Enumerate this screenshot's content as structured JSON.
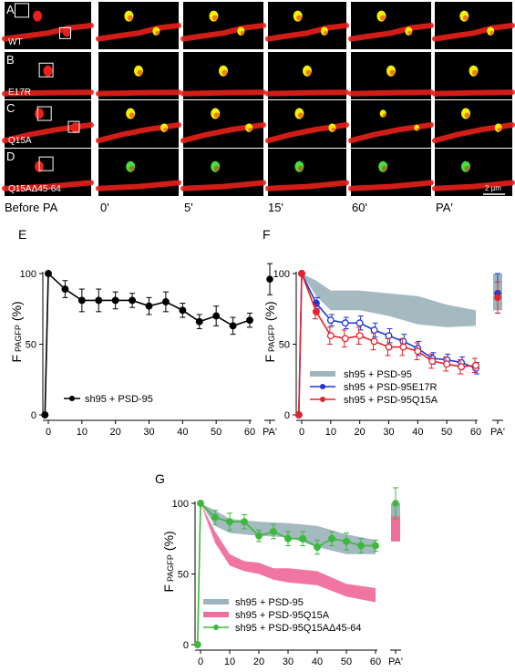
{
  "micrographs": {
    "rows": [
      {
        "panel": "A",
        "label": "WT"
      },
      {
        "panel": "B",
        "label": "E17R"
      },
      {
        "panel": "C",
        "label": "Q15A"
      },
      {
        "panel": "D",
        "label": "Q15AΔ45-64"
      }
    ],
    "columns": [
      "Before PA",
      "0'",
      "5'",
      "15'",
      "60'",
      "PA'"
    ],
    "scale_bar": "2 µm",
    "colors": {
      "background": "#000000",
      "dendrite": "#e8201a",
      "spot": "#f3f000",
      "spot_green": "#44e23a"
    }
  },
  "chart_data": [
    {
      "panel": "E",
      "type": "line",
      "ylabel_main": "F",
      "ylabel_sub": "PAGFP",
      "ylabel_unit": "(%)",
      "x_ticks": [
        "0",
        "10",
        "20",
        "30",
        "40",
        "50",
        "60"
      ],
      "y_ticks": [
        "0",
        "50",
        "100"
      ],
      "extra_x_tick": "PA'",
      "xlim": [
        0,
        60
      ],
      "ylim": [
        0,
        100
      ],
      "series": [
        {
          "name": "sh95 + PSD-95",
          "color": "#000000",
          "x": [
            -1,
            0,
            5,
            10,
            15,
            20,
            25,
            30,
            35,
            40,
            45,
            50,
            55,
            60
          ],
          "y": [
            0,
            100,
            89,
            81,
            81,
            81,
            81,
            77,
            80,
            74,
            66,
            70,
            63,
            67
          ],
          "err": [
            0,
            0,
            6,
            8,
            8,
            6,
            5,
            6,
            7,
            5,
            5,
            7,
            6,
            5
          ],
          "pa": 96,
          "pa_err": 11
        }
      ],
      "legend": [
        "sh95 + PSD-95"
      ]
    },
    {
      "panel": "F",
      "type": "line",
      "ylabel_main": "F",
      "ylabel_sub": "PAGFP",
      "ylabel_unit": "(%)",
      "x_ticks": [
        "0",
        "10",
        "20",
        "30",
        "40",
        "50",
        "60"
      ],
      "y_ticks": [
        "0",
        "50",
        "100"
      ],
      "extra_x_tick": "PA'",
      "xlim": [
        0,
        60
      ],
      "ylim": [
        0,
        100
      ],
      "band": {
        "name": "sh95 + PSD-95",
        "color": "#9fb5bd",
        "x": [
          0,
          5,
          10,
          20,
          30,
          40,
          50,
          60
        ],
        "upper": [
          100,
          95,
          88,
          88,
          86,
          84,
          78,
          74
        ],
        "lower": [
          100,
          84,
          74,
          74,
          70,
          64,
          62,
          63
        ],
        "pa_upper": 100,
        "pa_lower": 74
      },
      "series": [
        {
          "name": "sh95 + PSD-95E17R",
          "color": "#1f35d6",
          "x": [
            -1,
            0,
            5,
            10,
            15,
            20,
            25,
            30,
            35,
            40,
            45,
            50,
            55,
            60
          ],
          "y": [
            0,
            100,
            79,
            67,
            65,
            65,
            60,
            56,
            52,
            47,
            40,
            39,
            37,
            33
          ],
          "err": [
            0,
            0,
            4,
            4,
            4,
            5,
            5,
            5,
            5,
            5,
            4,
            4,
            4,
            4
          ],
          "pa": 86,
          "pa_err": 14
        },
        {
          "name": "sh95 + PSD-95Q15A",
          "color": "#e3232b",
          "x": [
            -1,
            0,
            5,
            10,
            15,
            20,
            25,
            30,
            35,
            40,
            45,
            50,
            55,
            60
          ],
          "y": [
            0,
            100,
            73,
            56,
            54,
            56,
            52,
            48,
            48,
            45,
            38,
            36,
            34,
            35
          ],
          "err": [
            0,
            0,
            5,
            6,
            6,
            6,
            6,
            6,
            6,
            6,
            5,
            5,
            5,
            5
          ],
          "pa": 83,
          "pa_err": 11
        }
      ],
      "legend": [
        "sh95 + PSD-95",
        "sh95 + PSD-95E17R",
        "sh95 + PSD-95Q15A"
      ]
    },
    {
      "panel": "G",
      "type": "line",
      "ylabel_main": "F",
      "ylabel_sub": "PAGFP",
      "ylabel_unit": "(%)",
      "x_ticks": [
        "0",
        "10",
        "20",
        "30",
        "40",
        "50",
        "60"
      ],
      "y_ticks": [
        "0",
        "50",
        "100"
      ],
      "extra_x_tick": "PA'",
      "xlim": [
        0,
        60
      ],
      "ylim": [
        0,
        100
      ],
      "bands": [
        {
          "name": "sh95 + PSD-95",
          "color": "#9fb5bd",
          "x": [
            0,
            5,
            10,
            20,
            30,
            40,
            50,
            60
          ],
          "upper": [
            100,
            95,
            89,
            87,
            86,
            84,
            78,
            74
          ],
          "lower": [
            100,
            84,
            79,
            77,
            76,
            69,
            64,
            64
          ],
          "pa_upper": 100,
          "pa_lower": 84
        },
        {
          "name": "sh95 + PSD-95Q15A",
          "color": "#f06e9c",
          "x": [
            0,
            5,
            10,
            15,
            20,
            25,
            30,
            40,
            50,
            60
          ],
          "upper": [
            100,
            80,
            64,
            59,
            58,
            54,
            54,
            52,
            43,
            40
          ],
          "lower": [
            100,
            72,
            56,
            52,
            50,
            46,
            44,
            42,
            34,
            30
          ],
          "pa_upper": 91,
          "pa_lower": 73
        }
      ],
      "series": [
        {
          "name": "sh95 + PSD-95Q15AΔ45-64",
          "color": "#3cb83a",
          "x": [
            -1,
            0,
            5,
            10,
            15,
            20,
            25,
            30,
            35,
            40,
            45,
            50,
            55,
            60
          ],
          "y": [
            0,
            100,
            90,
            87,
            87,
            77,
            80,
            75,
            75,
            69,
            75,
            73,
            70,
            70
          ],
          "err": [
            0,
            0,
            5,
            6,
            5,
            4,
            5,
            5,
            5,
            5,
            5,
            6,
            5,
            4
          ],
          "pa": 100,
          "pa_err": 11
        }
      ],
      "legend": [
        "sh95 + PSD-95",
        "sh95 + PSD-95Q15A",
        "sh95 + PSD-95Q15AΔ45-64"
      ]
    }
  ]
}
